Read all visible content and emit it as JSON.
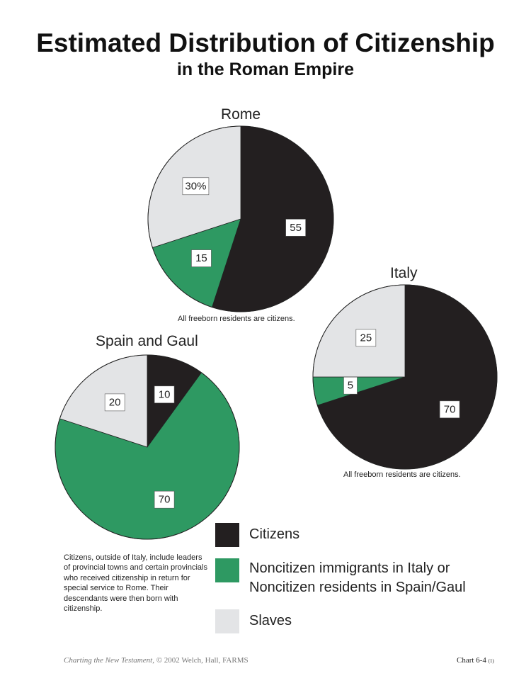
{
  "title": "Estimated Distribution of Citizenship",
  "subtitle": "in the Roman Empire",
  "colors": {
    "citizens": "#231f20",
    "noncitizens": "#2e9962",
    "slaves": "#e3e4e6"
  },
  "legend": [
    {
      "key": "citizens",
      "label_lines": [
        "Citizens"
      ]
    },
    {
      "key": "noncitizens",
      "label_lines": [
        "Noncitizen immigrants in Italy or",
        "Noncitizen residents in Spain/Gaul"
      ]
    },
    {
      "key": "slaves",
      "label_lines": [
        "Slaves"
      ]
    }
  ],
  "footnote": "Citizens, outside of Italy, include leaders of provincial towns and certain provincials who received citizenship in return for special service to Rome. Their descendants were then born with citizenship.",
  "footer": {
    "source_italic": "Charting the New Testament",
    "source_rest": ", © 2002 Welch, Hall, FARMS",
    "chart_id": "Chart 6-4",
    "chart_sub": "(1)"
  },
  "chart_data": [
    {
      "type": "pie",
      "title": "Rome",
      "note": "All freeborn residents are citizens.",
      "slices": [
        {
          "category": "citizens",
          "value": 55,
          "label": "55"
        },
        {
          "category": "noncitizens",
          "value": 15,
          "label": "15"
        },
        {
          "category": "slaves",
          "value": 30,
          "label": "30%"
        }
      ]
    },
    {
      "type": "pie",
      "title": "Italy",
      "note": "All freeborn residents are citizens.",
      "slices": [
        {
          "category": "citizens",
          "value": 70,
          "label": "70"
        },
        {
          "category": "noncitizens",
          "value": 5,
          "label": "5"
        },
        {
          "category": "slaves",
          "value": 25,
          "label": "25"
        }
      ]
    },
    {
      "type": "pie",
      "title": "Spain and Gaul",
      "note": "",
      "slices": [
        {
          "category": "citizens",
          "value": 10,
          "label": "10"
        },
        {
          "category": "noncitizens",
          "value": 70,
          "label": "70"
        },
        {
          "category": "slaves",
          "value": 20,
          "label": "20"
        }
      ]
    }
  ]
}
